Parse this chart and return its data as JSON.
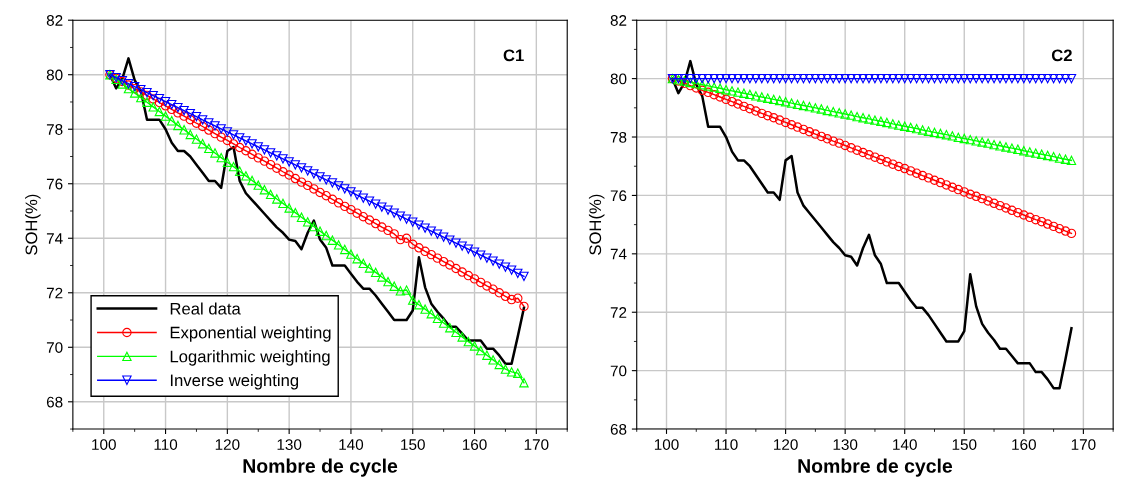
{
  "chart_data": [
    {
      "type": "line",
      "xlabel": "Nombre de cycle",
      "ylabel": "SOH(%)",
      "annotations": [
        "C1"
      ],
      "x": [
        101,
        102,
        103,
        104,
        105,
        106,
        107,
        108,
        109,
        110,
        111,
        112,
        113,
        114,
        115,
        116,
        117,
        118,
        119,
        120,
        121,
        122,
        123,
        124,
        125,
        126,
        127,
        128,
        129,
        130,
        131,
        132,
        133,
        134,
        135,
        136,
        137,
        138,
        139,
        140,
        141,
        142,
        143,
        144,
        145,
        146,
        147,
        148,
        149,
        150,
        151,
        152,
        153,
        154,
        155,
        156,
        157,
        158,
        159,
        160,
        161,
        162,
        163,
        164,
        165,
        166,
        167,
        168
      ],
      "xlim": [
        95,
        175
      ],
      "xticks": [
        100,
        110,
        120,
        130,
        140,
        150,
        160,
        170
      ],
      "ylim": [
        67,
        82
      ],
      "yticks": [
        68,
        70,
        72,
        74,
        76,
        78,
        80,
        82
      ],
      "grid": true,
      "legend": "bottom left",
      "series": [
        {
          "name": "Real data",
          "color": "#000000",
          "marker": "none",
          "values": [
            80.0,
            79.5,
            79.85,
            80.6,
            79.8,
            79.4,
            78.35,
            78.35,
            78.35,
            78.0,
            77.5,
            77.2,
            77.2,
            77.0,
            76.7,
            76.4,
            76.1,
            76.1,
            75.85,
            77.2,
            77.35,
            76.1,
            75.65,
            75.4,
            75.15,
            74.9,
            74.65,
            74.4,
            74.2,
            73.95,
            73.9,
            73.6,
            74.2,
            74.65,
            73.95,
            73.65,
            73.0,
            73.0,
            73.0,
            72.7,
            72.4,
            72.15,
            72.15,
            71.9,
            71.6,
            71.3,
            71.0,
            71.0,
            71.0,
            71.35,
            73.3,
            72.2,
            71.6,
            71.3,
            71.05,
            70.75,
            70.75,
            70.5,
            70.25,
            70.25,
            70.25,
            69.95,
            69.95,
            69.7,
            69.4,
            69.4,
            70.4,
            71.45
          ]
        },
        {
          "name": "Exponential weighting",
          "color": "#ff0000",
          "marker": "circle",
          "values": [
            80.0,
            79.87,
            79.75,
            79.62,
            79.49,
            79.37,
            79.24,
            79.11,
            78.98,
            78.86,
            78.73,
            78.6,
            78.48,
            78.35,
            78.22,
            78.1,
            77.97,
            77.84,
            77.71,
            77.59,
            77.46,
            77.33,
            77.21,
            77.08,
            76.95,
            76.83,
            76.7,
            76.57,
            76.44,
            76.32,
            76.19,
            76.06,
            75.94,
            75.81,
            75.68,
            75.56,
            75.43,
            75.3,
            75.17,
            75.05,
            74.92,
            74.79,
            74.67,
            74.54,
            74.41,
            74.29,
            74.16,
            73.95,
            74.0,
            73.78,
            73.65,
            73.52,
            73.4,
            73.27,
            73.14,
            73.02,
            72.89,
            72.76,
            72.63,
            72.51,
            72.38,
            72.25,
            72.13,
            72.0,
            71.87,
            71.75,
            71.8,
            71.5
          ]
        },
        {
          "name": "Logarithmic weighting",
          "color": "#00ff00",
          "marker": "triangle",
          "values": [
            80.0,
            79.83,
            79.66,
            79.49,
            79.33,
            79.16,
            78.99,
            78.82,
            78.65,
            78.48,
            78.31,
            78.14,
            77.98,
            77.81,
            77.64,
            77.47,
            77.3,
            77.13,
            76.96,
            76.79,
            76.63,
            76.46,
            76.29,
            76.12,
            75.95,
            75.78,
            75.61,
            75.44,
            75.28,
            75.11,
            74.94,
            74.77,
            74.6,
            74.43,
            74.26,
            74.1,
            73.93,
            73.76,
            73.59,
            73.42,
            73.25,
            73.08,
            72.91,
            72.75,
            72.58,
            72.41,
            72.24,
            72.07,
            72.1,
            71.73,
            71.56,
            71.4,
            71.23,
            71.06,
            70.89,
            70.72,
            70.55,
            70.38,
            70.21,
            70.05,
            69.88,
            69.71,
            69.54,
            69.37,
            69.2,
            69.1,
            69.05,
            68.7
          ]
        },
        {
          "name": "Inverse weighting",
          "color": "#0000ff",
          "marker": "triangle_down",
          "values": [
            80.0,
            79.89,
            79.78,
            79.67,
            79.56,
            79.45,
            79.34,
            79.23,
            79.12,
            79.01,
            78.9,
            78.79,
            78.68,
            78.57,
            78.46,
            78.34,
            78.23,
            78.12,
            78.01,
            77.9,
            77.79,
            77.68,
            77.57,
            77.46,
            77.35,
            77.24,
            77.13,
            77.02,
            76.91,
            76.8,
            76.69,
            76.58,
            76.47,
            76.36,
            76.25,
            76.14,
            76.03,
            75.92,
            75.81,
            75.7,
            75.58,
            75.47,
            75.36,
            75.25,
            75.14,
            75.03,
            74.92,
            74.81,
            74.7,
            74.59,
            74.48,
            74.37,
            74.26,
            74.15,
            74.04,
            73.93,
            73.82,
            73.71,
            73.6,
            73.49,
            73.38,
            73.27,
            73.16,
            73.05,
            72.94,
            72.83,
            72.71,
            72.6
          ]
        }
      ]
    },
    {
      "type": "line",
      "xlabel": "Nombre de cycle",
      "ylabel": "SOH(%)",
      "annotations": [
        "C2"
      ],
      "x": [
        101,
        102,
        103,
        104,
        105,
        106,
        107,
        108,
        109,
        110,
        111,
        112,
        113,
        114,
        115,
        116,
        117,
        118,
        119,
        120,
        121,
        122,
        123,
        124,
        125,
        126,
        127,
        128,
        129,
        130,
        131,
        132,
        133,
        134,
        135,
        136,
        137,
        138,
        139,
        140,
        141,
        142,
        143,
        144,
        145,
        146,
        147,
        148,
        149,
        150,
        151,
        152,
        153,
        154,
        155,
        156,
        157,
        158,
        159,
        160,
        161,
        162,
        163,
        164,
        165,
        166,
        167,
        168
      ],
      "xlim": [
        95,
        175
      ],
      "xticks": [
        100,
        110,
        120,
        130,
        140,
        150,
        160,
        170
      ],
      "ylim": [
        68,
        82
      ],
      "yticks": [
        68,
        70,
        72,
        74,
        76,
        78,
        80,
        82
      ],
      "grid": true,
      "series": [
        {
          "color": "#000000",
          "marker": "none",
          "values": [
            80.0,
            79.5,
            79.85,
            80.6,
            79.8,
            79.4,
            78.35,
            78.35,
            78.35,
            78.0,
            77.5,
            77.2,
            77.2,
            77.0,
            76.7,
            76.4,
            76.1,
            76.1,
            75.85,
            77.2,
            77.35,
            76.1,
            75.65,
            75.4,
            75.15,
            74.9,
            74.65,
            74.4,
            74.2,
            73.95,
            73.9,
            73.6,
            74.2,
            74.65,
            73.95,
            73.65,
            73.0,
            73.0,
            73.0,
            72.7,
            72.4,
            72.15,
            72.15,
            71.9,
            71.6,
            71.3,
            71.0,
            71.0,
            71.0,
            71.35,
            73.3,
            72.2,
            71.6,
            71.3,
            71.05,
            70.75,
            70.75,
            70.5,
            70.25,
            70.25,
            70.25,
            69.95,
            69.95,
            69.7,
            69.4,
            69.4,
            70.4,
            71.45
          ]
        },
        {
          "color": "#ff0000",
          "marker": "circle",
          "values": [
            80.0,
            79.92,
            79.84,
            79.76,
            79.68,
            79.6,
            79.53,
            79.45,
            79.37,
            79.29,
            79.21,
            79.13,
            79.05,
            78.97,
            78.89,
            78.81,
            78.73,
            78.66,
            78.58,
            78.5,
            78.42,
            78.34,
            78.26,
            78.18,
            78.1,
            78.02,
            77.94,
            77.86,
            77.79,
            77.71,
            77.63,
            77.55,
            77.47,
            77.39,
            77.31,
            77.23,
            77.15,
            77.07,
            76.99,
            76.92,
            76.84,
            76.76,
            76.68,
            76.6,
            76.52,
            76.44,
            76.36,
            76.28,
            76.2,
            76.12,
            76.04,
            75.97,
            75.89,
            75.81,
            75.73,
            75.65,
            75.57,
            75.49,
            75.41,
            75.33,
            75.25,
            75.17,
            75.1,
            75.02,
            74.94,
            74.86,
            74.78,
            74.7
          ]
        },
        {
          "color": "#00ff00",
          "marker": "triangle",
          "values": [
            80.0,
            79.96,
            79.92,
            79.87,
            79.83,
            79.79,
            79.75,
            79.71,
            79.67,
            79.62,
            79.58,
            79.54,
            79.5,
            79.46,
            79.41,
            79.37,
            79.33,
            79.29,
            79.25,
            79.21,
            79.16,
            79.12,
            79.08,
            79.04,
            79.0,
            78.96,
            78.91,
            78.87,
            78.83,
            78.79,
            78.75,
            78.7,
            78.66,
            78.62,
            78.58,
            78.54,
            78.5,
            78.45,
            78.41,
            78.37,
            78.33,
            78.29,
            78.24,
            78.2,
            78.16,
            78.12,
            78.08,
            78.04,
            77.99,
            77.95,
            77.91,
            77.87,
            77.83,
            77.79,
            77.74,
            77.7,
            77.66,
            77.62,
            77.58,
            77.53,
            77.49,
            77.45,
            77.41,
            77.37,
            77.33,
            77.28,
            77.24,
            77.2
          ]
        },
        {
          "color": "#0000ff",
          "marker": "triangle_down",
          "values": [
            80.0,
            80.0,
            80.0,
            80.0,
            80.0,
            80.0,
            80.0,
            80.0,
            80.0,
            80.0,
            80.0,
            80.0,
            80.0,
            80.0,
            80.0,
            80.0,
            80.0,
            80.0,
            80.0,
            80.0,
            80.0,
            80.0,
            80.0,
            80.0,
            80.0,
            80.0,
            80.0,
            80.0,
            80.0,
            80.0,
            80.0,
            80.0,
            80.0,
            80.0,
            80.0,
            80.0,
            80.0,
            80.0,
            80.0,
            80.0,
            80.0,
            80.0,
            80.0,
            80.0,
            80.0,
            80.0,
            80.0,
            80.0,
            80.0,
            80.0,
            80.0,
            80.0,
            80.0,
            80.0,
            80.0,
            80.0,
            80.0,
            80.0,
            80.0,
            80.0,
            80.0,
            80.0,
            80.0,
            80.0,
            80.0,
            80.0,
            80.0,
            80.0
          ]
        }
      ]
    }
  ]
}
